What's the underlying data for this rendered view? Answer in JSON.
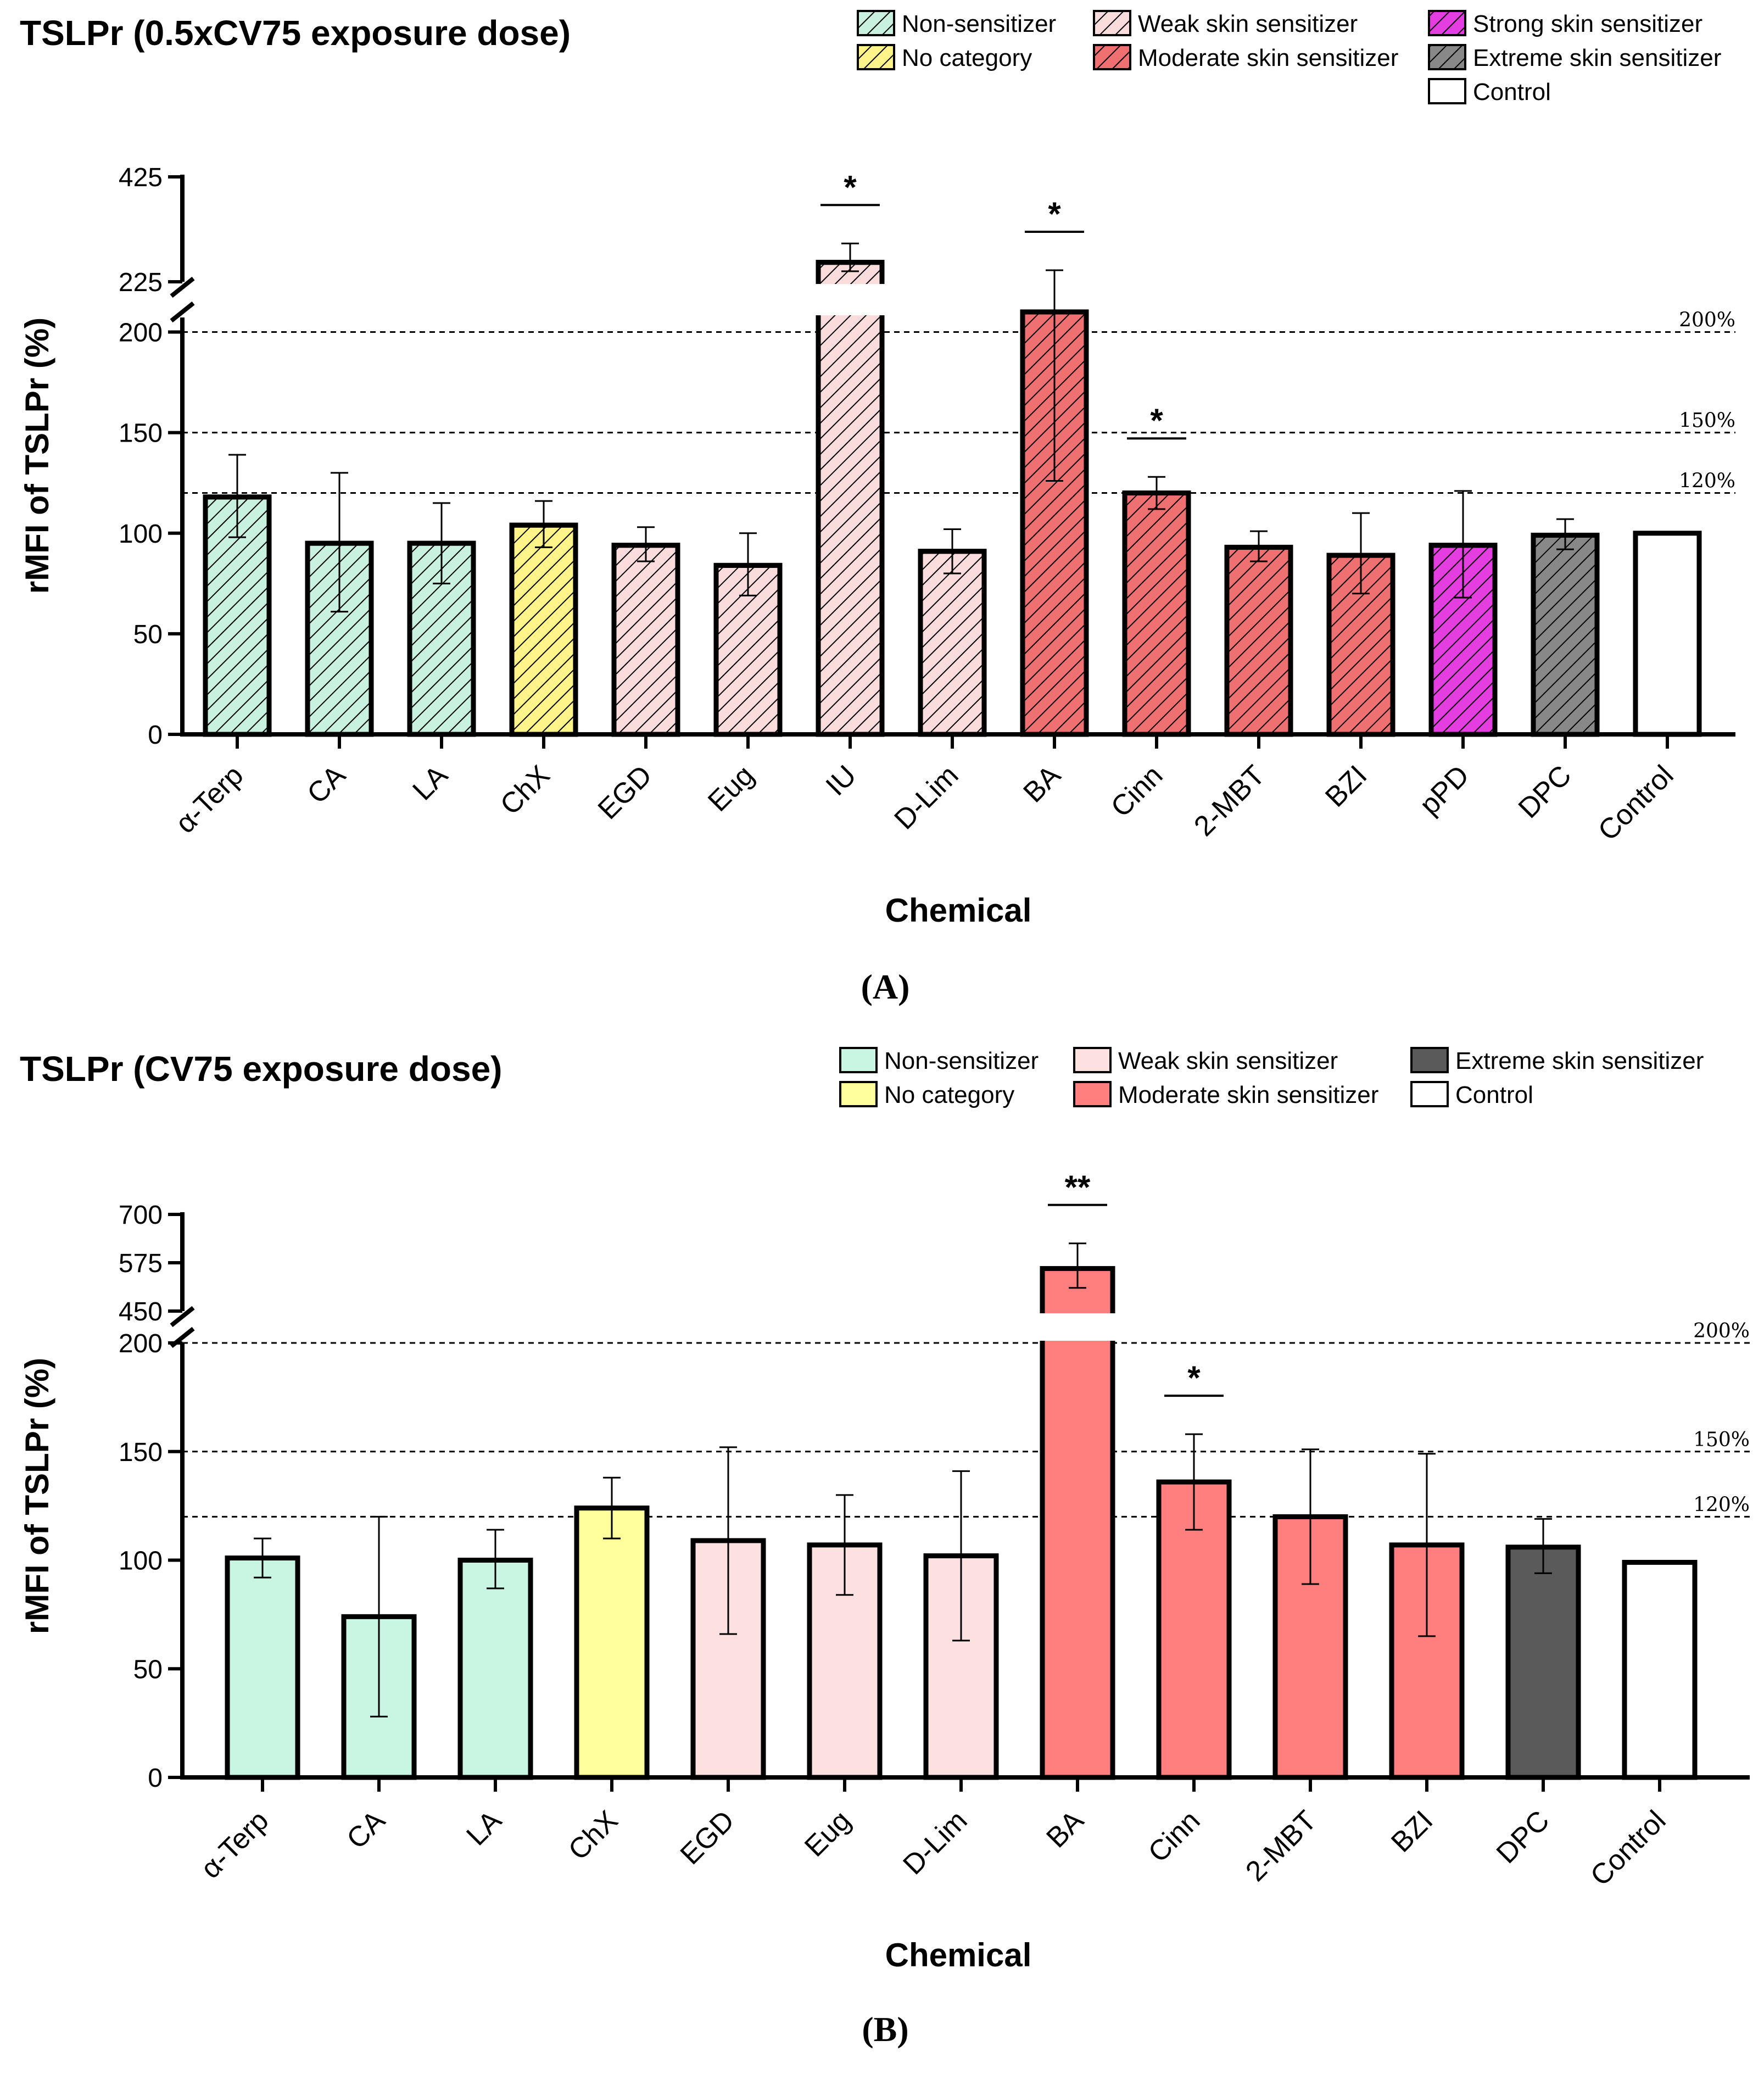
{
  "chart_data": [
    {
      "type": "bar",
      "title": "TSLPr (0.5xCV75 exposure dose)",
      "panel_label": "(A)",
      "xlabel": "Chemical",
      "ylabel": "rMFI of TSLPr (%)",
      "y_axis_break": {
        "lower_range": [
          0,
          225
        ],
        "upper_range": [
          225,
          425
        ]
      },
      "y_ticks_lower": [
        "0",
        "50",
        "100",
        "150",
        "200",
        "225"
      ],
      "y_ticks_upper": [
        "425"
      ],
      "reference_lines": [
        {
          "value": 200,
          "label": "200%"
        },
        {
          "value": 150,
          "label": "150%"
        },
        {
          "value": 120,
          "label": "120%"
        }
      ],
      "legend": [
        {
          "label": "Non-sensitizer",
          "color": "#c8f1df",
          "hatched": true
        },
        {
          "label": "No category",
          "color": "#fff48a",
          "hatched": true
        },
        {
          "label": "Weak skin sensitizer",
          "color": "#fbdcdc",
          "hatched": true
        },
        {
          "label": "Moderate skin sensitizer",
          "color": "#ef7070",
          "hatched": true
        },
        {
          "label": "Strong skin sensitizer",
          "color": "#e43ee0",
          "hatched": true
        },
        {
          "label": "Extreme skin sensitizer",
          "color": "#888888",
          "hatched": true
        },
        {
          "label": "Control",
          "color": "#ffffff",
          "hatched": false
        }
      ],
      "bars": [
        {
          "category": "α-Terp",
          "value": 118,
          "err_low": 98,
          "err_high": 139,
          "group": 0,
          "sig": ""
        },
        {
          "category": "CA",
          "value": 95,
          "err_low": 61,
          "err_high": 130,
          "group": 0,
          "sig": ""
        },
        {
          "category": "LA",
          "value": 95,
          "err_low": 75,
          "err_high": 115,
          "group": 0,
          "sig": ""
        },
        {
          "category": "ChX",
          "value": 104,
          "err_low": 93,
          "err_high": 116,
          "group": 1,
          "sig": ""
        },
        {
          "category": "EGD",
          "value": 94,
          "err_low": 86,
          "err_high": 103,
          "group": 2,
          "sig": ""
        },
        {
          "category": "Eug",
          "value": 84,
          "err_low": 69,
          "err_high": 100,
          "group": 2,
          "sig": ""
        },
        {
          "category": "IU",
          "value": 262,
          "err_low": 245,
          "err_high": 298,
          "group": 2,
          "sig": "*"
        },
        {
          "category": "D-Lim",
          "value": 91,
          "err_low": 80,
          "err_high": 102,
          "group": 2,
          "sig": ""
        },
        {
          "category": "BA",
          "value": 210,
          "err_low": 126,
          "err_high": 247,
          "group": 3,
          "sig": "*"
        },
        {
          "category": "Cinn",
          "value": 120,
          "err_low": 112,
          "err_high": 128,
          "group": 3,
          "sig": "*"
        },
        {
          "category": "2-MBT",
          "value": 93,
          "err_low": 86,
          "err_high": 101,
          "group": 3,
          "sig": ""
        },
        {
          "category": "BZI",
          "value": 89,
          "err_low": 70,
          "err_high": 110,
          "group": 3,
          "sig": ""
        },
        {
          "category": "pPD",
          "value": 94,
          "err_low": 68,
          "err_high": 121,
          "group": 4,
          "sig": ""
        },
        {
          "category": "DPC",
          "value": 99,
          "err_low": 92,
          "err_high": 107,
          "group": 5,
          "sig": ""
        },
        {
          "category": "Control",
          "value": 100,
          "err_low": 100,
          "err_high": 100,
          "group": 6,
          "sig": ""
        }
      ]
    },
    {
      "type": "bar",
      "title": "TSLPr (CV75 exposure dose)",
      "panel_label": "(B)",
      "xlabel": "Chemical",
      "ylabel": "rMFI of TSLPr (%)",
      "y_axis_break": {
        "lower_range": [
          0,
          200
        ],
        "upper_range": [
          450,
          700
        ]
      },
      "y_ticks_lower": [
        "0",
        "50",
        "100",
        "150",
        "200"
      ],
      "y_ticks_upper": [
        "450",
        "575",
        "700"
      ],
      "reference_lines": [
        {
          "value": 200,
          "label": "200%"
        },
        {
          "value": 150,
          "label": "150%"
        },
        {
          "value": 120,
          "label": "120%"
        }
      ],
      "legend": [
        {
          "label": "Non-sensitizer",
          "color": "#c8f6e2",
          "hatched": false
        },
        {
          "label": "No category",
          "color": "#ffff9c",
          "hatched": false
        },
        {
          "label": "Weak skin sensitizer",
          "color": "#fde1e1",
          "hatched": false
        },
        {
          "label": "Moderate skin sensitizer",
          "color": "#ff7f7f",
          "hatched": false
        },
        {
          "label": "Extreme skin sensitizer",
          "color": "#5a5a5a",
          "hatched": false
        },
        {
          "label": "Control",
          "color": "#ffffff",
          "hatched": false
        }
      ],
      "bars": [
        {
          "category": "α-Terp",
          "value": 101,
          "err_low": 92,
          "err_high": 110,
          "group": 0,
          "sig": ""
        },
        {
          "category": "CA",
          "value": 74,
          "err_low": 28,
          "err_high": 120,
          "group": 0,
          "sig": ""
        },
        {
          "category": "LA",
          "value": 100,
          "err_low": 87,
          "err_high": 114,
          "group": 0,
          "sig": ""
        },
        {
          "category": "ChX",
          "value": 124,
          "err_low": 110,
          "err_high": 138,
          "group": 1,
          "sig": ""
        },
        {
          "category": "EGD",
          "value": 109,
          "err_low": 66,
          "err_high": 152,
          "group": 2,
          "sig": ""
        },
        {
          "category": "Eug",
          "value": 107,
          "err_low": 84,
          "err_high": 130,
          "group": 2,
          "sig": ""
        },
        {
          "category": "D-Lim",
          "value": 102,
          "err_low": 63,
          "err_high": 141,
          "group": 2,
          "sig": ""
        },
        {
          "category": "BA",
          "value": 560,
          "err_low": 510,
          "err_high": 625,
          "group": 3,
          "sig": "**"
        },
        {
          "category": "Cinn",
          "value": 136,
          "err_low": 114,
          "err_high": 158,
          "group": 3,
          "sig": "*"
        },
        {
          "category": "2-MBT",
          "value": 120,
          "err_low": 89,
          "err_high": 151,
          "group": 3,
          "sig": ""
        },
        {
          "category": "BZI",
          "value": 107,
          "err_low": 65,
          "err_high": 149,
          "group": 3,
          "sig": ""
        },
        {
          "category": "DPC",
          "value": 106,
          "err_low": 94,
          "err_high": 119,
          "group": 4,
          "sig": ""
        },
        {
          "category": "Control",
          "value": 99,
          "err_low": 99,
          "err_high": 99,
          "group": 5,
          "sig": ""
        }
      ]
    }
  ]
}
